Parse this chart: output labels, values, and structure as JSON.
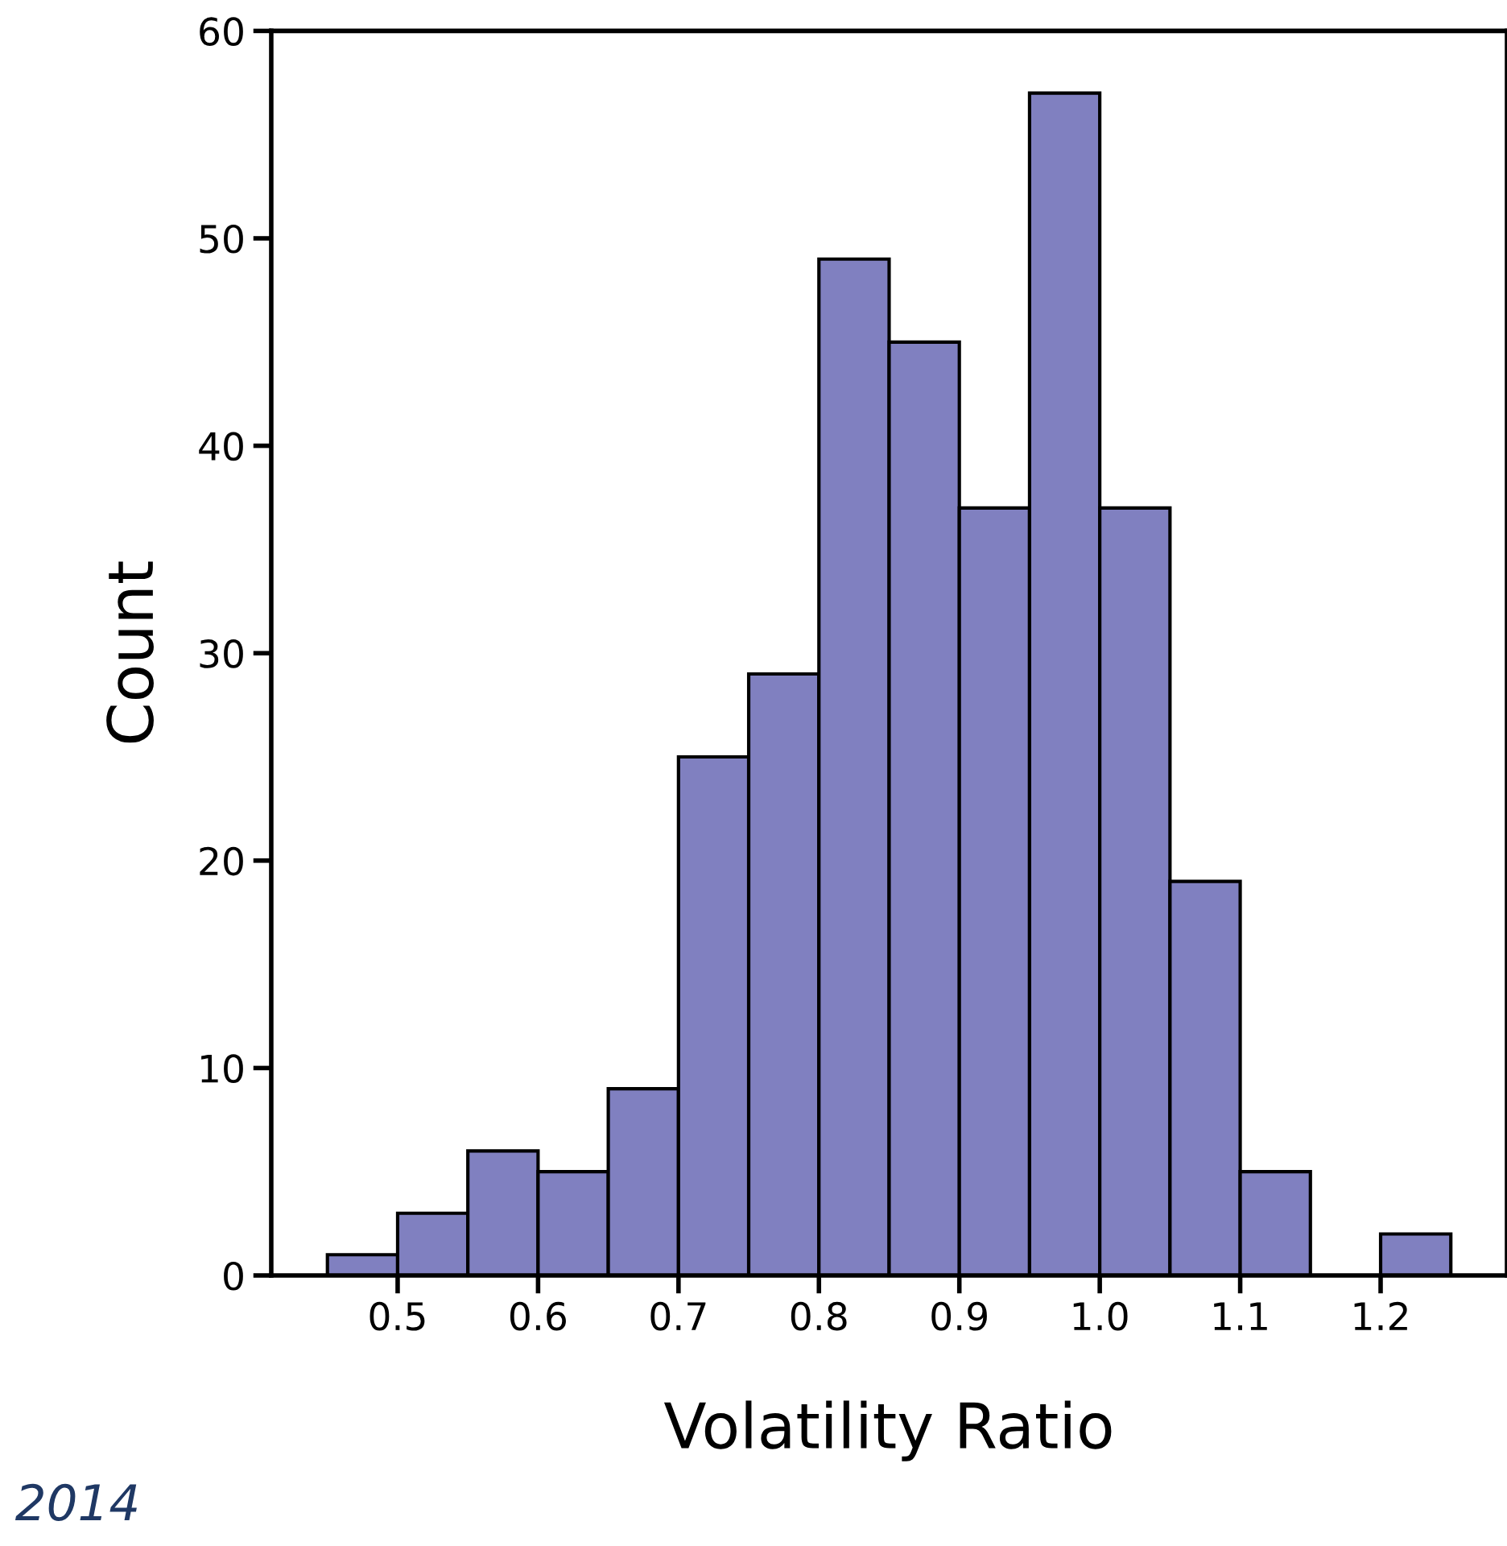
{
  "chart_data": {
    "type": "histogram",
    "xlabel": "Volatility Ratio",
    "ylabel": "Count",
    "bins": [
      0.45,
      0.5,
      0.55,
      0.6,
      0.65,
      0.7,
      0.75,
      0.8,
      0.85,
      0.9,
      0.95,
      1.0,
      1.05,
      1.1,
      1.15,
      1.2,
      1.25
    ],
    "values": [
      1,
      3,
      6,
      5,
      9,
      25,
      29,
      49,
      45,
      37,
      57,
      37,
      19,
      5,
      0,
      2
    ],
    "color": "#8080c0",
    "xlim": [
      0.41,
      1.29
    ],
    "xticks": [
      0.5,
      0.6,
      0.7,
      0.8,
      0.9,
      {
        "value": 1.0,
        "label": "1.0"
      },
      1.1,
      1.2
    ],
    "ylim": [
      0,
      60
    ],
    "yticks": [
      0,
      10,
      20,
      30,
      40,
      50,
      60
    ],
    "grid": false,
    "annotations": [
      "2014"
    ]
  }
}
